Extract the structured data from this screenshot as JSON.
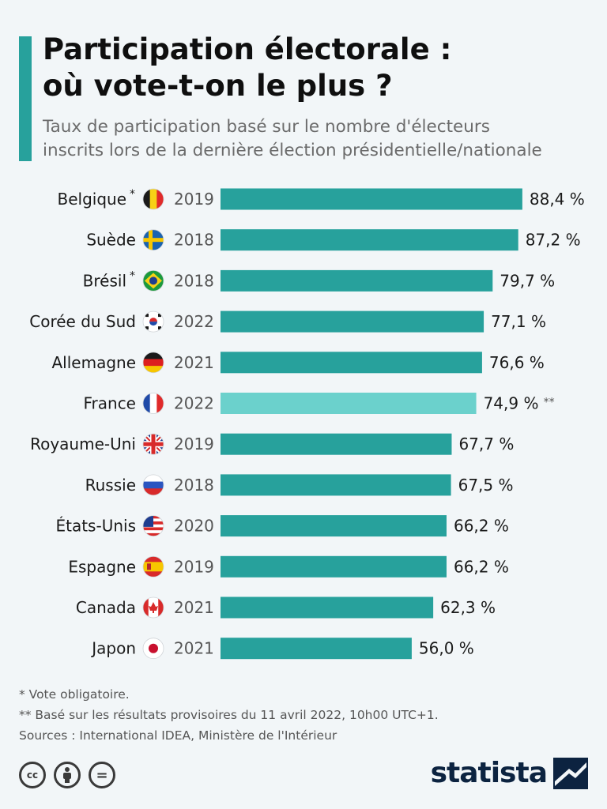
{
  "header": {
    "title_line1": "Participation électorale :",
    "title_line2": "où vote-t-on le plus ?",
    "subtitle_line1": "Taux de participation basé sur le nombre d'électeurs",
    "subtitle_line2": "inscrits lors de la dernière élection présidentielle/nationale"
  },
  "colors": {
    "accent": "#27a19c",
    "bar": "#27a19c",
    "highlight_bar": "#6bd1cc",
    "brand": "#0c2340"
  },
  "chart_data": {
    "type": "bar",
    "orientation": "horizontal",
    "unit": "%",
    "xlim": [
      0,
      100
    ],
    "grid": false,
    "rows": [
      {
        "country": "Belgique",
        "marker": "*",
        "flag": "flag-belgium-icon",
        "year": "2019",
        "value": 88.4,
        "label": "88,4 %",
        "note": ""
      },
      {
        "country": "Suède",
        "marker": "",
        "flag": "flag-sweden-icon",
        "year": "2018",
        "value": 87.2,
        "label": "87,2 %",
        "note": ""
      },
      {
        "country": "Brésil",
        "marker": "*",
        "flag": "flag-brazil-icon",
        "year": "2018",
        "value": 79.7,
        "label": "79,7 %",
        "note": ""
      },
      {
        "country": "Corée du Sud",
        "marker": "",
        "flag": "flag-south-korea-icon",
        "year": "2022",
        "value": 77.1,
        "label": "77,1 %",
        "note": ""
      },
      {
        "country": "Allemagne",
        "marker": "",
        "flag": "flag-germany-icon",
        "year": "2021",
        "value": 76.6,
        "label": "76,6 %",
        "note": ""
      },
      {
        "country": "France",
        "marker": "",
        "flag": "flag-france-icon",
        "year": "2022",
        "value": 74.9,
        "label": "74,9 %",
        "note": "**",
        "highlight": true
      },
      {
        "country": "Royaume-Uni",
        "marker": "",
        "flag": "flag-uk-icon",
        "year": "2019",
        "value": 67.7,
        "label": "67,7 %",
        "note": ""
      },
      {
        "country": "Russie",
        "marker": "",
        "flag": "flag-russia-icon",
        "year": "2018",
        "value": 67.5,
        "label": "67,5 %",
        "note": ""
      },
      {
        "country": "États-Unis",
        "marker": "",
        "flag": "flag-usa-icon",
        "year": "2020",
        "value": 66.2,
        "label": "66,2 %",
        "note": ""
      },
      {
        "country": "Espagne",
        "marker": "",
        "flag": "flag-spain-icon",
        "year": "2019",
        "value": 66.2,
        "label": "66,2 %",
        "note": ""
      },
      {
        "country": "Canada",
        "marker": "",
        "flag": "flag-canada-icon",
        "year": "2021",
        "value": 62.3,
        "label": "62,3 %",
        "note": ""
      },
      {
        "country": "Japon",
        "marker": "",
        "flag": "flag-japan-icon",
        "year": "2021",
        "value": 56.0,
        "label": "56,0 %",
        "note": ""
      }
    ]
  },
  "footnotes": {
    "line1": "*   Vote obligatoire.",
    "line2": "** Basé sur les résultats provisoires du 11 avril 2022, 10h00 UTC+1.",
    "line3": "Sources : International IDEA, Ministère de l'Intérieur"
  },
  "license_icons": [
    "cc-icon",
    "attribution-icon",
    "no-derivatives-icon"
  ],
  "license_labels": {
    "cc": "cc",
    "nd": "="
  },
  "brand": {
    "name": "statista",
    "logo": "statista-logo-icon"
  }
}
